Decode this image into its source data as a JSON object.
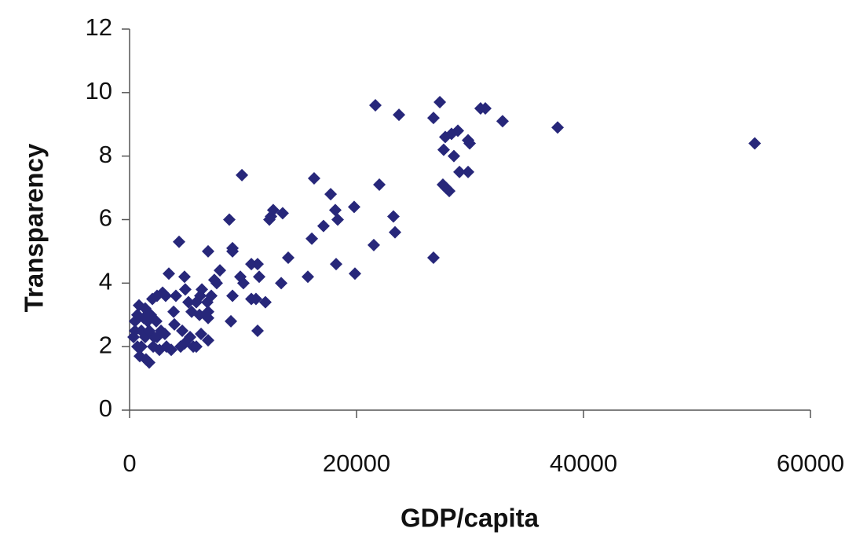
{
  "chart_data": {
    "type": "scatter",
    "x_label": "GDP/capita",
    "y_label": "Transparency",
    "color": "#27277a",
    "xlim": [
      0,
      60000
    ],
    "xticks": [
      0,
      20000,
      40000,
      60000
    ],
    "ylim": [
      0,
      12
    ],
    "yticks": [
      0,
      2,
      4,
      6,
      8,
      10,
      12
    ],
    "x": [
      21660,
      27340,
      23740,
      26780,
      30930,
      31350,
      32870,
      37720,
      55090,
      27820,
      28370,
      28930,
      29830,
      29970,
      27680,
      28580,
      29070,
      29830,
      27610,
      27890,
      28170,
      22010,
      16260,
      9900,
      17720,
      18130,
      18340,
      19790,
      23250,
      23390,
      21520,
      26780,
      17090,
      16060,
      18200,
      19860,
      15710,
      13490,
      12660,
      12320,
      12460,
      8790,
      9070,
      9070,
      6920,
      4360,
      10730,
      11280,
      13980,
      13360,
      11420,
      9760,
      10030,
      10730,
      11140,
      11970,
      9070,
      11280,
      8930,
      7960,
      7680,
      7470,
      7200,
      3460,
      4840,
      4910,
      6370,
      6230,
      6850,
      6920,
      6920,
      6920,
      6160,
      5880,
      5190,
      5470,
      4080,
      3880,
      3180,
      2420,
      2910,
      2010,
      1380,
      830,
      690,
      480,
      1040,
      350,
      690,
      900,
      1450,
      1730,
      2150,
      2420,
      2770,
      3110,
      3250,
      3670,
      4500,
      4840,
      5330,
      5880,
      6300,
      5610,
      4640,
      3950,
      1590,
      1250,
      1870,
      2350,
      1040,
      1380,
      1730,
      2080,
      2630,
      480
    ],
    "values": [
      9.6,
      9.7,
      9.3,
      9.2,
      9.5,
      9.5,
      9.1,
      8.9,
      8.4,
      8.6,
      8.7,
      8.8,
      8.5,
      8.4,
      8.2,
      8.0,
      7.5,
      7.5,
      7.1,
      7.0,
      6.9,
      7.1,
      7.3,
      7.4,
      6.8,
      6.3,
      6.0,
      6.4,
      6.1,
      5.6,
      5.2,
      4.8,
      5.8,
      5.4,
      4.6,
      4.3,
      4.2,
      6.2,
      6.3,
      6.0,
      6.1,
      6.0,
      5.0,
      5.1,
      5.0,
      5.3,
      4.6,
      4.6,
      4.8,
      4.0,
      4.2,
      4.2,
      4.0,
      3.5,
      3.5,
      3.4,
      3.6,
      2.5,
      2.8,
      4.4,
      4.0,
      4.1,
      3.6,
      4.3,
      4.2,
      3.8,
      3.8,
      3.6,
      3.4,
      3.1,
      2.9,
      2.2,
      3.0,
      3.4,
      3.4,
      3.1,
      3.6,
      3.1,
      3.6,
      3.6,
      3.7,
      3.5,
      3.2,
      3.3,
      3.0,
      2.8,
      2.5,
      2.3,
      2.0,
      1.7,
      1.6,
      1.5,
      2.3,
      2.3,
      2.5,
      2.4,
      2.0,
      1.9,
      2.0,
      2.1,
      2.3,
      2.0,
      2.4,
      2.0,
      2.5,
      2.7,
      2.8,
      2.9,
      3.0,
      2.8,
      2.0,
      2.3,
      2.5,
      2.0,
      1.9,
      2.5
    ]
  }
}
